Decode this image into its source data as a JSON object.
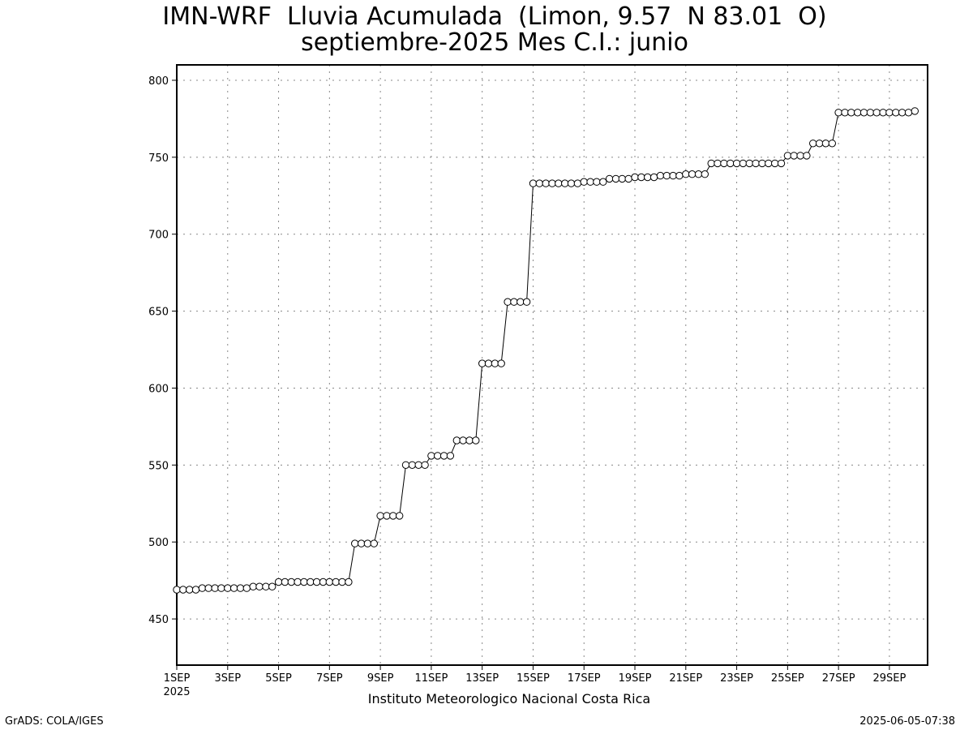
{
  "chart_data": {
    "type": "line",
    "title": "IMN-WRF  Lluvia Acumulada  (Limon, 9.57  N 83.01  O)",
    "subtitle": "septiembre-2025 Mes C.I.: junio",
    "xlabel": "",
    "ylabel": "",
    "xlim": [
      1,
      30.5
    ],
    "ylim": [
      420,
      810
    ],
    "y_ticks": [
      450,
      500,
      550,
      600,
      650,
      700,
      750,
      800
    ],
    "x_ticks": [
      {
        "day": 1,
        "label": "1SEP"
      },
      {
        "day": 3,
        "label": "3SEP"
      },
      {
        "day": 5,
        "label": "5SEP"
      },
      {
        "day": 7,
        "label": "7SEP"
      },
      {
        "day": 9,
        "label": "9SEP"
      },
      {
        "day": 11,
        "label": "11SEP"
      },
      {
        "day": 13,
        "label": "13SEP"
      },
      {
        "day": 15,
        "label": "15SEP"
      },
      {
        "day": 17,
        "label": "17SEP"
      },
      {
        "day": 19,
        "label": "19SEP"
      },
      {
        "day": 21,
        "label": "21SEP"
      },
      {
        "day": 23,
        "label": "23SEP"
      },
      {
        "day": 25,
        "label": "25SEP"
      },
      {
        "day": 27,
        "label": "27SEP"
      },
      {
        "day": 29,
        "label": "29SEP"
      }
    ],
    "x_year_label": "2025",
    "grid": true,
    "marker": "open-circle",
    "time_step_days": 0.25,
    "series": [
      {
        "values": [
          469,
          469,
          469,
          469,
          470,
          470,
          470,
          470,
          470,
          470,
          470,
          470,
          471,
          471,
          471,
          471,
          474,
          474,
          474,
          474,
          474,
          474,
          474,
          474,
          474,
          474,
          474,
          474,
          499,
          499,
          499,
          499,
          517,
          517,
          517,
          517,
          550,
          550,
          550,
          550,
          556,
          556,
          556,
          556,
          566,
          566,
          566,
          566,
          616,
          616,
          616,
          616,
          656,
          656,
          656,
          656,
          733,
          733,
          733,
          733,
          733,
          733,
          733,
          733,
          734,
          734,
          734,
          734,
          736,
          736,
          736,
          736,
          737,
          737,
          737,
          737,
          738,
          738,
          738,
          738,
          739,
          739,
          739,
          739,
          746,
          746,
          746,
          746,
          746,
          746,
          746,
          746,
          746,
          746,
          746,
          746,
          751,
          751,
          751,
          751,
          759,
          759,
          759,
          759,
          779,
          779,
          779,
          779,
          779,
          779,
          779,
          779,
          779,
          779,
          779,
          779,
          780
        ]
      }
    ]
  },
  "footer": {
    "institution": "Instituto Meteorologico Nacional Costa Rica",
    "credit": "GrADS: COLA/IGES",
    "timestamp": "2025-06-05-07:38"
  }
}
